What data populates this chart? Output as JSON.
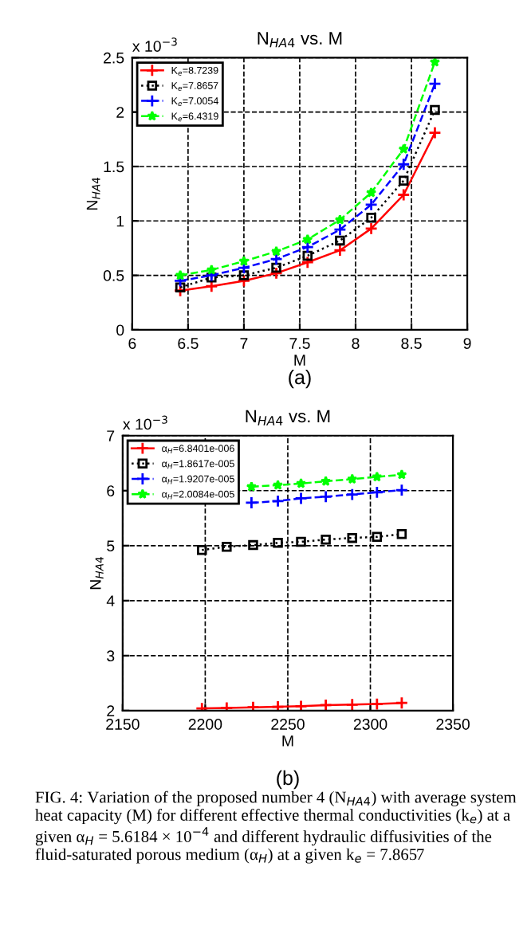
{
  "chart_data": [
    {
      "type": "line",
      "title": "N$_{HA4}$ vs. M",
      "xlabel": "M",
      "ylabel": "N$_{HA4}$",
      "annotations": [
        "x 10$^{−3}$",
        "(a)"
      ],
      "x": [
        6.43,
        6.71,
        7.0,
        7.29,
        7.57,
        7.86,
        8.14,
        8.43,
        8.71
      ],
      "series": [
        {
          "name": "K$_{e}$=8.7239",
          "color": "#ff0000",
          "marker": "cross",
          "line_style": "solid",
          "values": [
            0.36,
            0.4,
            0.45,
            0.52,
            0.62,
            0.73,
            0.93,
            1.24,
            1.81
          ]
        },
        {
          "name": "K$_{e}$=7.8657",
          "color": "#000000",
          "marker": "square",
          "line_style": "dotted",
          "values": [
            0.39,
            0.48,
            0.5,
            0.57,
            0.68,
            0.82,
            1.03,
            1.37,
            2.02
          ]
        },
        {
          "name": "K$_{e}$=7.0054",
          "color": "#0000ff",
          "marker": "cross",
          "line_style": "dashed",
          "values": [
            0.45,
            0.5,
            0.57,
            0.65,
            0.76,
            0.92,
            1.15,
            1.52,
            2.26
          ]
        },
        {
          "name": "K$_{e}$=6.4319",
          "color": "#00ff00",
          "marker": "star",
          "line_style": "dashed",
          "values": [
            0.5,
            0.55,
            0.63,
            0.72,
            0.83,
            1.01,
            1.26,
            1.66,
            2.46
          ]
        }
      ],
      "xlim": [
        6,
        9
      ],
      "xticks": [
        6,
        6.5,
        7,
        7.5,
        8,
        8.5,
        9
      ],
      "ylim": [
        0,
        2.5
      ],
      "yticks": [
        0,
        0.5,
        1,
        1.5,
        2,
        2.5
      ],
      "grid": true,
      "legend": "top left"
    },
    {
      "type": "line",
      "title": "N$_{HA4}$ vs. M",
      "xlabel": "M",
      "ylabel": "N$_{HA4}$",
      "annotations": [
        "x 10$^{−3}$",
        "(b)",
        "FIG. 4: Variation of the proposed number 4 (N$_{HA4}$) with average system heat capacity (M) for different effective thermal conductivities (k$_{e}$) at a given α$_{H}$ = 5.6184 × 10$^{−4}$ and different hydraulic diffusivities of the fluid-saturated porous medium (α$_{H}$) at a given k$_{e}$ = 7.8657"
      ],
      "series": [
        {
          "name": "α$_{H}$=6.8401e-006",
          "color": "#ff0000",
          "marker": "cross",
          "line_style": "solid",
          "x": [
            2198,
            2213,
            2229,
            2244,
            2258,
            2273,
            2289,
            2304,
            2319
          ],
          "values": [
            2.04,
            2.05,
            2.06,
            2.07,
            2.08,
            2.1,
            2.11,
            2.12,
            2.14
          ]
        },
        {
          "name": "α$_{H}$=1.8617e-005",
          "color": "#000000",
          "marker": "square",
          "line_style": "dotted",
          "x": [
            2198,
            2213,
            2229,
            2244,
            2258,
            2273,
            2289,
            2304,
            2319
          ],
          "values": [
            4.92,
            4.98,
            5.01,
            5.05,
            5.07,
            5.11,
            5.14,
            5.16,
            5.21
          ]
        },
        {
          "name": "α$_{H}$=1.9207e-005",
          "color": "#0000ff",
          "marker": "cross",
          "line_style": "dashed",
          "x": [
            2228,
            2244,
            2258,
            2273,
            2289,
            2304,
            2319
          ],
          "values": [
            5.78,
            5.81,
            5.86,
            5.89,
            5.93,
            5.97,
            6.01
          ]
        },
        {
          "name": "α$_{H}$=2.0084e-005",
          "color": "#00ff00",
          "marker": "star",
          "line_style": "dashed",
          "x": [
            2228,
            2244,
            2258,
            2273,
            2289,
            2304,
            2319
          ],
          "values": [
            6.07,
            6.1,
            6.13,
            6.17,
            6.21,
            6.25,
            6.29
          ]
        }
      ],
      "xlim": [
        2150,
        2350
      ],
      "xticks": [
        2150,
        2200,
        2250,
        2300,
        2350
      ],
      "ylim": [
        2,
        7
      ],
      "yticks": [
        2,
        3,
        4,
        5,
        6,
        7
      ],
      "grid": true,
      "legend": "top left"
    }
  ]
}
